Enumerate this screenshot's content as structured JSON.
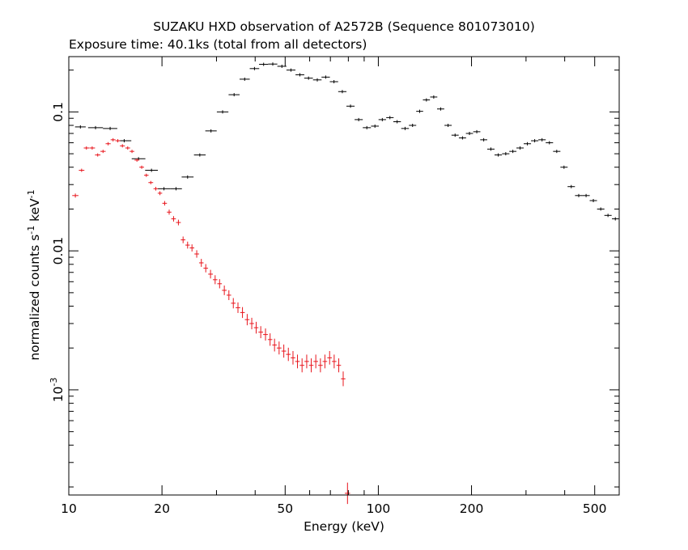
{
  "title": "SUZAKU HXD observation of A2572B (Sequence 801073010)",
  "subtitle": "Exposure time: 40.1ks (total from all detectors)",
  "colors": {
    "pin": "#000000",
    "gso": "#e8141b",
    "frame": "#000000",
    "background": "#ffffff"
  },
  "chart_data": {
    "type": "scatter",
    "title": "SUZAKU HXD observation of A2572B (Sequence 801073010)",
    "subtitle": "Exposure time: 40.1ks (total from all detectors)",
    "xlabel": "Energy (keV)",
    "ylabel_parts": {
      "a": "normalized counts s",
      "a_sup": "-1",
      "b": " keV",
      "b_sup": "-1"
    },
    "xscale": "log",
    "yscale": "log",
    "xlim": [
      10,
      600
    ],
    "ylim": [
      0.000175,
      0.25
    ],
    "grid": false,
    "legend": "none",
    "x_ticks": [
      {
        "value": 10,
        "label": "10"
      },
      {
        "value": 20,
        "label": "20"
      },
      {
        "value": 50,
        "label": "50"
      },
      {
        "value": 100,
        "label": "100"
      },
      {
        "value": 200,
        "label": "200"
      },
      {
        "value": 500,
        "label": "500"
      }
    ],
    "y_ticks": [
      {
        "value": 0.1,
        "label": "0.1"
      },
      {
        "value": 0.01,
        "label": "0.01"
      },
      {
        "value": 0.001,
        "label_base": "10",
        "label_sup": "-3"
      }
    ],
    "series": [
      {
        "key": "pin",
        "color": "#000000",
        "marker": "crosshair",
        "points": [
          [
            10.9,
            0.078
          ],
          [
            12.2,
            0.077
          ],
          [
            13.6,
            0.076
          ],
          [
            15.1,
            0.062
          ],
          [
            16.8,
            0.046
          ],
          [
            18.5,
            0.038
          ],
          [
            20.3,
            0.028
          ],
          [
            22.2,
            0.028
          ],
          [
            24.2,
            0.034
          ],
          [
            26.5,
            0.049
          ],
          [
            28.8,
            0.073
          ],
          [
            31.4,
            0.1
          ],
          [
            34.2,
            0.133
          ],
          [
            37.0,
            0.172
          ],
          [
            39.8,
            0.205
          ],
          [
            42.6,
            0.22
          ],
          [
            45.6,
            0.221
          ],
          [
            48.8,
            0.213
          ],
          [
            52.2,
            0.2
          ],
          [
            55.8,
            0.185
          ],
          [
            59.5,
            0.175
          ],
          [
            63.5,
            0.17
          ],
          [
            67.6,
            0.178
          ],
          [
            71.9,
            0.165
          ],
          [
            76.5,
            0.14
          ],
          [
            81.3,
            0.11
          ],
          [
            86.4,
            0.088
          ],
          [
            91.8,
            0.077
          ],
          [
            97.5,
            0.079
          ],
          [
            103.0,
            0.088
          ],
          [
            109.0,
            0.091
          ],
          [
            115.0,
            0.085
          ],
          [
            122.0,
            0.076
          ],
          [
            129.0,
            0.08
          ],
          [
            136.0,
            0.101
          ],
          [
            143.0,
            0.122
          ],
          [
            151.0,
            0.128
          ],
          [
            159.0,
            0.105
          ],
          [
            168.0,
            0.08
          ],
          [
            177.0,
            0.068
          ],
          [
            187.0,
            0.065
          ],
          [
            197.0,
            0.07
          ],
          [
            208.0,
            0.072
          ],
          [
            219.0,
            0.063
          ],
          [
            231.0,
            0.054
          ],
          [
            244.0,
            0.049
          ],
          [
            258.0,
            0.05
          ],
          [
            272.0,
            0.052
          ],
          [
            287.0,
            0.055
          ],
          [
            303.0,
            0.059
          ],
          [
            320.0,
            0.062
          ],
          [
            338.0,
            0.063
          ],
          [
            357.0,
            0.06
          ],
          [
            377.0,
            0.052
          ],
          [
            398.0,
            0.04
          ],
          [
            420.0,
            0.029
          ],
          [
            444.0,
            0.025
          ],
          [
            469.0,
            0.025
          ],
          [
            495.0,
            0.023
          ],
          [
            523.0,
            0.02
          ],
          [
            552.0,
            0.018
          ],
          [
            583.0,
            0.017
          ]
        ]
      },
      {
        "key": "gso",
        "color": "#e8141b",
        "marker": "crosshair",
        "points": [
          [
            10.5,
            0.025
          ],
          [
            11.0,
            0.038
          ],
          [
            11.4,
            0.055
          ],
          [
            11.9,
            0.055
          ],
          [
            12.4,
            0.049
          ],
          [
            12.9,
            0.052
          ],
          [
            13.4,
            0.059
          ],
          [
            13.9,
            0.063
          ],
          [
            14.4,
            0.062
          ],
          [
            14.9,
            0.057
          ],
          [
            15.5,
            0.055
          ],
          [
            16.0,
            0.052
          ],
          [
            16.6,
            0.045
          ],
          [
            17.2,
            0.04
          ],
          [
            17.8,
            0.035
          ],
          [
            18.4,
            0.031
          ],
          [
            19.1,
            0.028
          ],
          [
            19.7,
            0.026
          ],
          [
            20.4,
            0.022
          ],
          [
            21.1,
            0.019
          ],
          [
            21.8,
            0.017
          ],
          [
            22.6,
            0.016
          ],
          [
            23.4,
            0.012
          ],
          [
            24.2,
            0.011
          ],
          [
            25.0,
            0.0105
          ],
          [
            25.9,
            0.0095
          ],
          [
            26.8,
            0.0082
          ],
          [
            27.7,
            0.0075
          ],
          [
            28.7,
            0.0068
          ],
          [
            29.7,
            0.0062
          ],
          [
            30.7,
            0.0058
          ],
          [
            31.8,
            0.0052
          ],
          [
            32.9,
            0.0048
          ],
          [
            34.0,
            0.0042
          ],
          [
            35.2,
            0.0039
          ],
          [
            36.4,
            0.0036
          ],
          [
            37.7,
            0.0032
          ],
          [
            39.0,
            0.003
          ],
          [
            40.3,
            0.0028
          ],
          [
            41.7,
            0.0026
          ],
          [
            43.2,
            0.0025
          ],
          [
            44.7,
            0.0023
          ],
          [
            46.2,
            0.0021
          ],
          [
            47.8,
            0.002
          ],
          [
            49.5,
            0.0019
          ],
          [
            51.2,
            0.0018
          ],
          [
            53.0,
            0.0017
          ],
          [
            54.8,
            0.0016
          ],
          [
            56.7,
            0.0015
          ],
          [
            58.7,
            0.0016
          ],
          [
            60.7,
            0.0015
          ],
          [
            62.8,
            0.0016
          ],
          [
            65.0,
            0.0015
          ],
          [
            67.2,
            0.0016
          ],
          [
            69.6,
            0.0017
          ],
          [
            72.0,
            0.0016
          ],
          [
            74.5,
            0.0015
          ],
          [
            77.0,
            0.0012
          ],
          [
            79.5,
            0.00018
          ]
        ]
      }
    ]
  }
}
